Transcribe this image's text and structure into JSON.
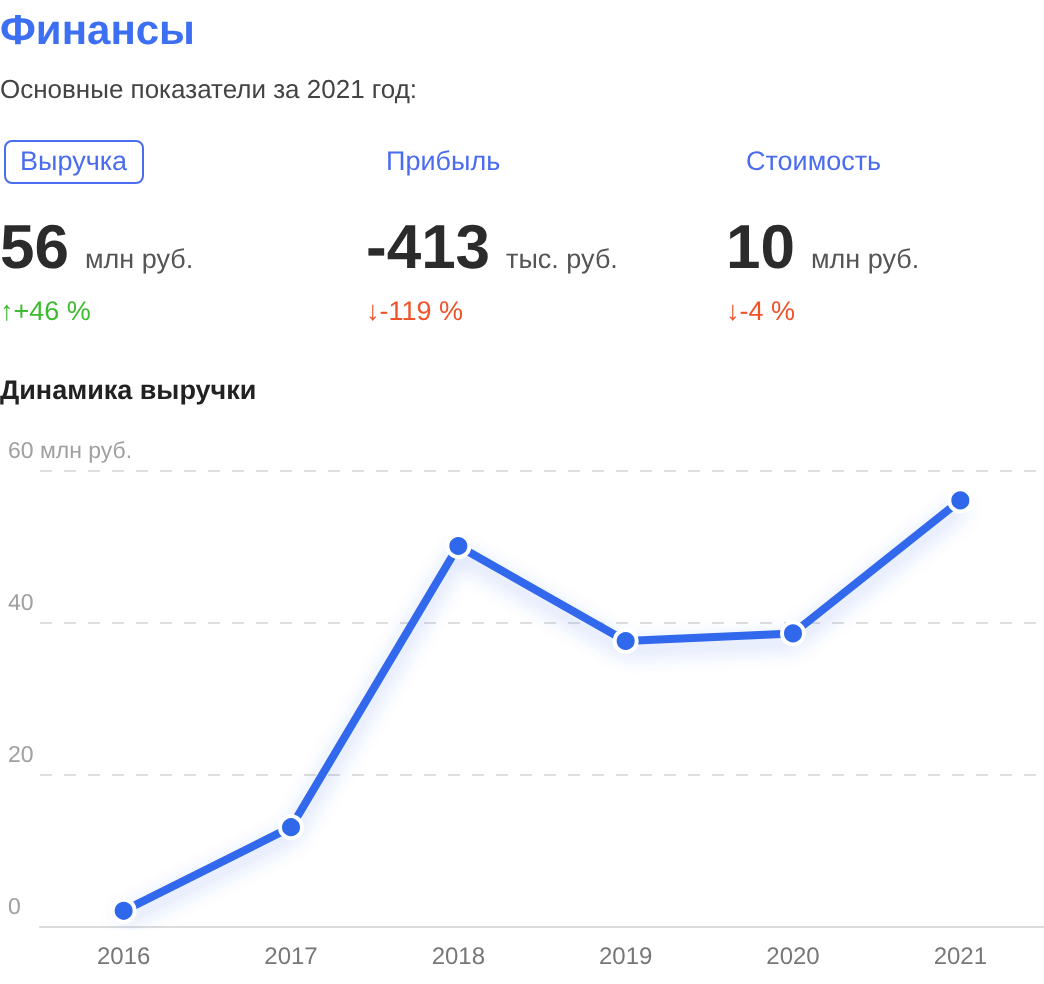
{
  "chart_data": [
    {
      "type": "other",
      "title": "Финансы",
      "subtitle": "Основные показатели за 2021 год:",
      "annotations": [
        "Выручка",
        "56",
        "млн руб.",
        "↑+46 %",
        "Прибыль",
        "-413",
        "тыс. руб.",
        "↓-119 %",
        "Стоимость",
        "10",
        "млн руб.",
        "↓-4 %"
      ],
      "colors": [
        "#3dbb2f",
        "#f0522a",
        "#f0522a"
      ]
    },
    {
      "type": "line",
      "title": "Динамика выручки",
      "categories": [
        "2016",
        "2017",
        "2018",
        "2019",
        "2020",
        "2021"
      ],
      "values": [
        2,
        13,
        50,
        37.5,
        38.5,
        56
      ],
      "color": "#3068ec",
      "ylim": [
        0,
        60
      ],
      "yticks": [
        0,
        20,
        40,
        {
          "value": 60,
          "label": "60 млн руб."
        }
      ],
      "grid": "y",
      "marker": "circle"
    }
  ]
}
